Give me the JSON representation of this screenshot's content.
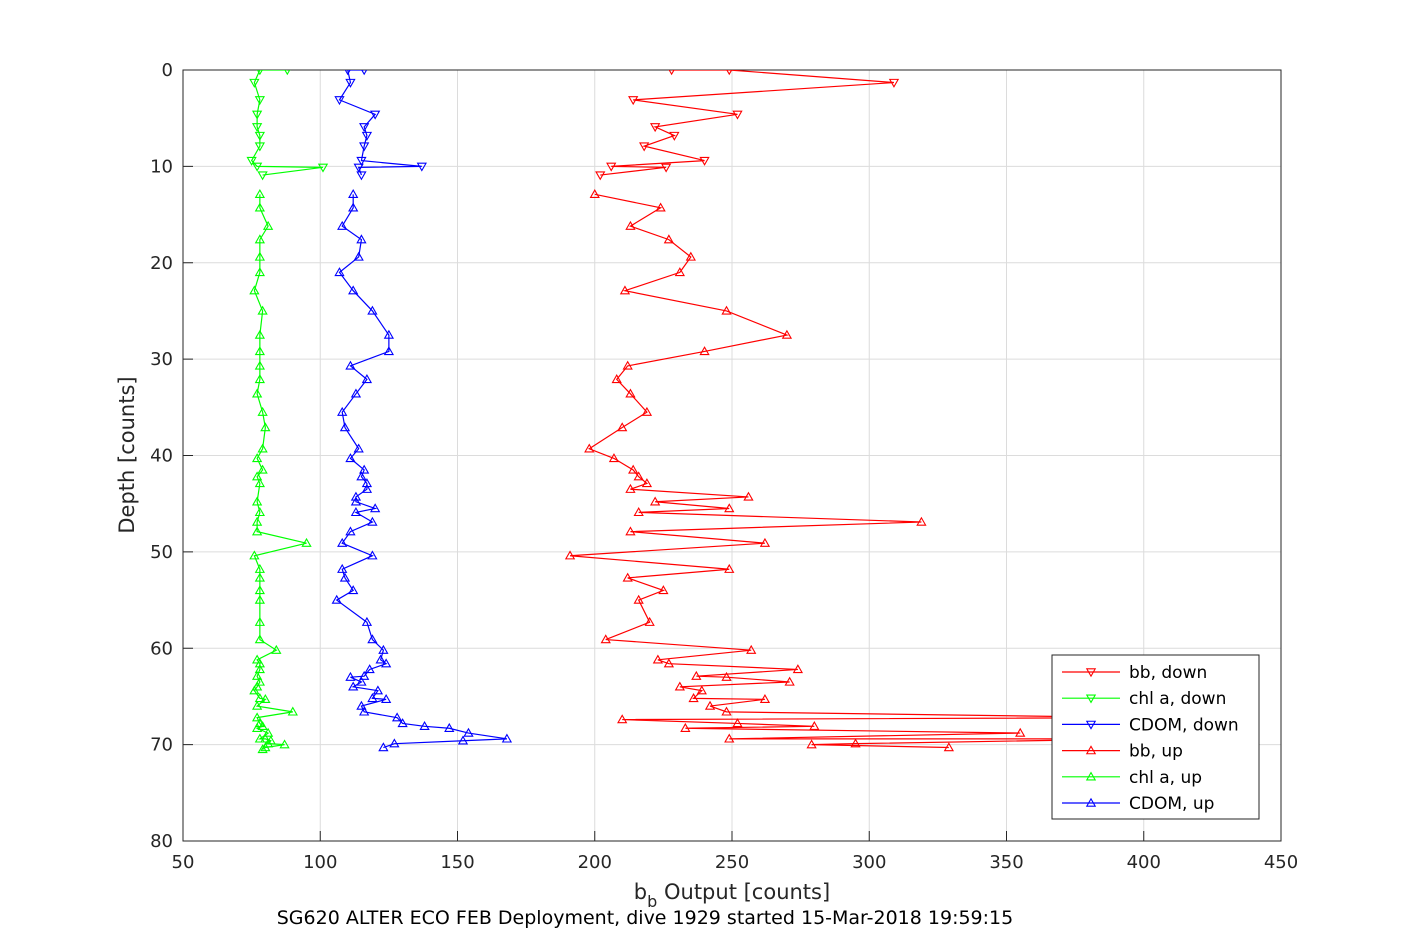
{
  "chart_data": {
    "type": "line",
    "title": "",
    "xlabel": "Output [counts]",
    "xlabel_main": "b",
    "xlabel_sub": "b",
    "ylabel": "Depth [counts]",
    "caption": "SG620 ALTER ECO FEB Deployment, dive 1929 started 15-Mar-2018 19:59:15",
    "xlim": [
      50,
      450
    ],
    "ylim": [
      0,
      80
    ],
    "y_reversed": true,
    "grid": true,
    "legend_position": "bottom-right",
    "xticks": [
      "50",
      "100",
      "150",
      "200",
      "250",
      "300",
      "350",
      "400",
      "450"
    ],
    "yticks": [
      "0",
      "10",
      "20",
      "30",
      "40",
      "50",
      "60",
      "70",
      "80"
    ],
    "series": [
      {
        "name": "bb, down",
        "color": "#ff0000",
        "marker": "triangle-down",
        "x": [
          228,
          249,
          309,
          214,
          252,
          222,
          229,
          218,
          240,
          206,
          226,
          202
        ],
        "y": [
          0,
          0,
          1.3,
          3.1,
          4.6,
          5.9,
          6.8,
          7.9,
          9.4,
          10,
          10.1,
          10.9
        ]
      },
      {
        "name": "chl a, down",
        "color": "#00ff00",
        "marker": "triangle-down",
        "x": [
          88,
          78,
          76,
          78,
          77,
          77,
          78,
          78,
          75,
          77,
          101,
          79
        ],
        "y": [
          0,
          0,
          1.3,
          3.1,
          4.6,
          5.9,
          6.8,
          7.9,
          9.4,
          10,
          10.1,
          10.9
        ]
      },
      {
        "name": "CDOM, down",
        "color": "#0000ff",
        "marker": "triangle-down",
        "x": [
          116,
          110,
          111,
          107,
          120,
          116,
          117,
          116,
          115,
          137,
          114,
          115
        ],
        "y": [
          0,
          0,
          1.3,
          3.1,
          4.6,
          5.9,
          6.8,
          7.9,
          9.4,
          10,
          10.1,
          10.9
        ]
      },
      {
        "name": "bb, up",
        "color": "#ff0000",
        "marker": "triangle-up",
        "x": [
          200,
          224,
          213,
          227,
          235,
          231,
          211,
          248,
          270,
          240,
          212,
          208,
          213,
          219,
          210,
          198,
          207,
          214,
          216,
          219,
          213,
          256,
          222,
          249,
          216,
          319,
          213,
          262,
          191,
          249,
          212,
          225,
          216,
          220,
          204,
          257,
          223,
          227,
          274,
          237,
          248,
          271,
          231,
          239,
          236,
          262,
          242,
          248,
          400,
          210,
          252,
          280,
          233,
          355,
          249,
          400,
          295,
          279,
          329
        ],
        "y": [
          12.9,
          14.3,
          16.2,
          17.6,
          19.4,
          21,
          22.9,
          25,
          27.5,
          29.2,
          30.7,
          32.1,
          33.6,
          35.5,
          37.1,
          39.3,
          40.3,
          41.5,
          42.2,
          42.9,
          43.5,
          44.3,
          44.8,
          45.5,
          45.9,
          46.9,
          47.9,
          49.1,
          50.4,
          51.8,
          52.7,
          54,
          55,
          57.3,
          59.1,
          60.2,
          61.2,
          61.6,
          62.2,
          62.9,
          63,
          63.5,
          64,
          64.4,
          65.2,
          65.3,
          66,
          66.6,
          67.2,
          67.4,
          67.8,
          68.1,
          68.3,
          68.8,
          69.4,
          69.4,
          69.9,
          70,
          70.3
        ],
        "y_note": "depth"
      },
      {
        "name": "chl a, up",
        "color": "#00ff00",
        "marker": "triangle-up",
        "x": [
          78,
          78,
          81,
          78,
          78,
          78,
          76,
          79,
          78,
          78,
          78,
          78,
          77,
          79,
          80,
          79,
          77,
          79,
          77,
          78,
          77,
          78,
          77,
          77,
          95,
          76,
          78,
          78,
          78,
          78,
          78,
          78,
          84,
          77,
          78,
          78,
          77,
          78,
          77,
          76,
          78,
          80,
          77,
          90,
          77,
          78,
          79,
          77,
          81,
          78,
          80,
          82,
          81,
          87,
          80,
          79
        ],
        "y": [
          12.9,
          14.3,
          16.2,
          17.6,
          19.4,
          21,
          22.9,
          25,
          27.5,
          29.2,
          30.7,
          32.1,
          33.6,
          35.5,
          37.1,
          39.3,
          40.3,
          41.5,
          42.2,
          42.9,
          44.8,
          45.9,
          46.9,
          47.9,
          49.1,
          50.4,
          51.8,
          52.7,
          54,
          55,
          57.3,
          59.1,
          60.2,
          61.2,
          61.6,
          62.2,
          62.9,
          63.5,
          64,
          64.4,
          65.2,
          65.3,
          66,
          66.6,
          67.2,
          67.8,
          68.1,
          68.3,
          68.8,
          69.4,
          69.4,
          69.6,
          69.9,
          70,
          70.3,
          70.5
        ],
        "y_note": "depth"
      },
      {
        "name": "CDOM, up",
        "color": "#0000ff",
        "marker": "triangle-up",
        "x": [
          112,
          112,
          108,
          115,
          114,
          107,
          112,
          119,
          125,
          125,
          111,
          117,
          113,
          108,
          109,
          114,
          111,
          116,
          115,
          117,
          117,
          113,
          113,
          120,
          113,
          119,
          111,
          108,
          119,
          108,
          109,
          112,
          106,
          117,
          119,
          123,
          122,
          124,
          118,
          116,
          111,
          115,
          112,
          121,
          119,
          124,
          115,
          116,
          128,
          130,
          138,
          147,
          154,
          168,
          152,
          127,
          123
        ],
        "y": [
          12.9,
          14.3,
          16.2,
          17.6,
          19.4,
          21,
          22.9,
          25,
          27.5,
          29.2,
          30.7,
          32.1,
          33.6,
          35.5,
          37.1,
          39.3,
          40.3,
          41.5,
          42.2,
          42.9,
          43.5,
          44.3,
          44.8,
          45.5,
          45.9,
          46.9,
          47.9,
          49.1,
          50.4,
          51.8,
          52.7,
          54,
          55,
          57.3,
          59.1,
          60.2,
          61.2,
          61.6,
          62.2,
          62.9,
          63,
          63.5,
          64,
          64.4,
          65.2,
          65.3,
          66,
          66.6,
          67.2,
          67.8,
          68.1,
          68.3,
          68.8,
          69.4,
          69.6,
          69.9,
          70.3
        ],
        "y_note": "depth"
      }
    ],
    "down_continuation": {
      "bb": {
        "x": [
          200,
          224,
          213,
          227,
          235,
          231,
          211,
          248,
          270,
          240,
          212,
          208,
          213,
          219,
          210,
          198,
          207,
          214,
          216,
          219,
          213,
          256,
          222,
          249,
          216,
          319,
          213,
          262,
          191,
          249,
          212,
          225,
          216,
          220,
          204,
          257,
          223,
          227,
          274,
          237,
          248,
          271,
          231,
          239,
          236,
          262,
          242,
          248,
          400,
          210,
          252,
          280,
          233,
          355,
          249,
          400,
          295,
          279,
          329
        ],
        "count": 0
      }
    }
  }
}
